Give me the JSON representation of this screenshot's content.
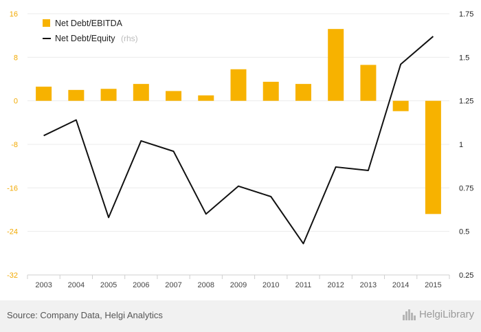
{
  "chart_data": {
    "type": "bar+line",
    "categories": [
      "2003",
      "2004",
      "2005",
      "2006",
      "2007",
      "2008",
      "2009",
      "2010",
      "2011",
      "2012",
      "2013",
      "2014",
      "2015"
    ],
    "series": [
      {
        "name": "Net Debt/EBITDA",
        "type": "bar",
        "axis": "left",
        "color": "#f7b200",
        "values": [
          2.6,
          2.0,
          2.2,
          3.1,
          1.8,
          1.0,
          5.8,
          3.5,
          3.1,
          13.2,
          6.6,
          -1.9,
          -20.8
        ]
      },
      {
        "name": "Net Debt/Equity",
        "name_suffix": "(rhs)",
        "type": "line",
        "axis": "right",
        "color": "#111111",
        "values": [
          1.05,
          1.14,
          0.58,
          1.02,
          0.96,
          0.6,
          0.76,
          0.7,
          0.43,
          0.87,
          0.85,
          1.46,
          1.62
        ]
      }
    ],
    "y_left": {
      "ticks": [
        16,
        8,
        0,
        -8,
        -16,
        -24,
        -32
      ],
      "ylim": [
        -32,
        16
      ],
      "color": "#f2a900"
    },
    "y_right": {
      "ticks": [
        1.75,
        1.5,
        1.25,
        1,
        0.75,
        0.5,
        0.25
      ],
      "ylim": [
        0.25,
        1.75
      ]
    },
    "grid": true,
    "legend_position": "top-left"
  },
  "footer": {
    "source": "Source: Company Data, Helgi Analytics",
    "brand": "HelgiLibrary"
  }
}
